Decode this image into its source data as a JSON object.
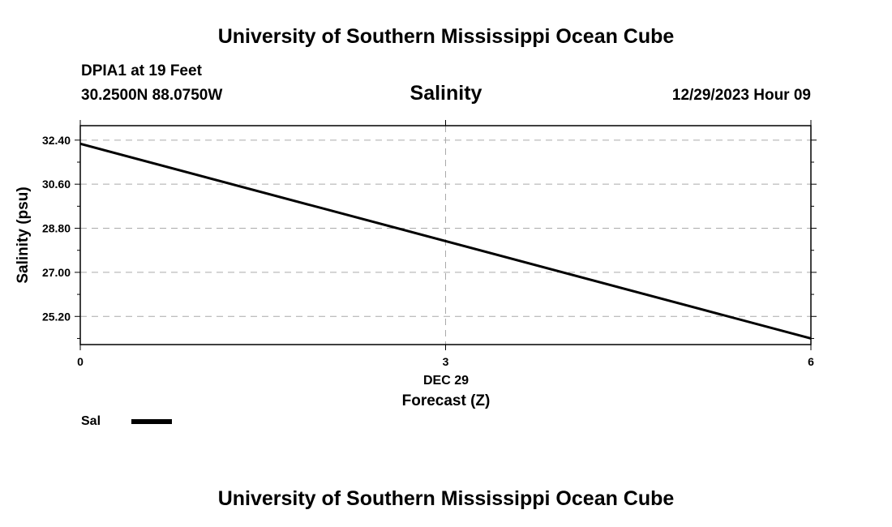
{
  "header": {
    "org_title": "University of Southern Mississippi Ocean Cube",
    "station": "DPIA1 at 19 Feet",
    "coordinates": "30.2500N  88.0750W",
    "datetime": "12/29/2023 Hour 09"
  },
  "footer": {
    "org_title": "University of Southern Mississippi Ocean Cube"
  },
  "legend": {
    "label": "Sal",
    "color": "#000000"
  },
  "chart_data": {
    "type": "line",
    "title": "Salinity",
    "xlabel": "Forecast (Z)",
    "ylabel": "Salinity (psu)",
    "x_date_label": "DEC 29",
    "x_ticks": [
      0,
      3,
      6
    ],
    "x_tick_labels": [
      "0",
      "3",
      "6"
    ],
    "y_ticks": [
      25.2,
      27.0,
      28.8,
      30.6,
      32.4
    ],
    "y_tick_labels": [
      "25.20",
      "27.00",
      "28.80",
      "30.60",
      "32.40"
    ],
    "xlim": [
      0,
      6
    ],
    "ylim": [
      24.05,
      32.99
    ],
    "grid": true,
    "legend_position": "bottom-left",
    "series": [
      {
        "name": "Sal",
        "x": [
          0,
          6
        ],
        "y": [
          32.25,
          24.3
        ],
        "color": "#000000"
      }
    ]
  }
}
